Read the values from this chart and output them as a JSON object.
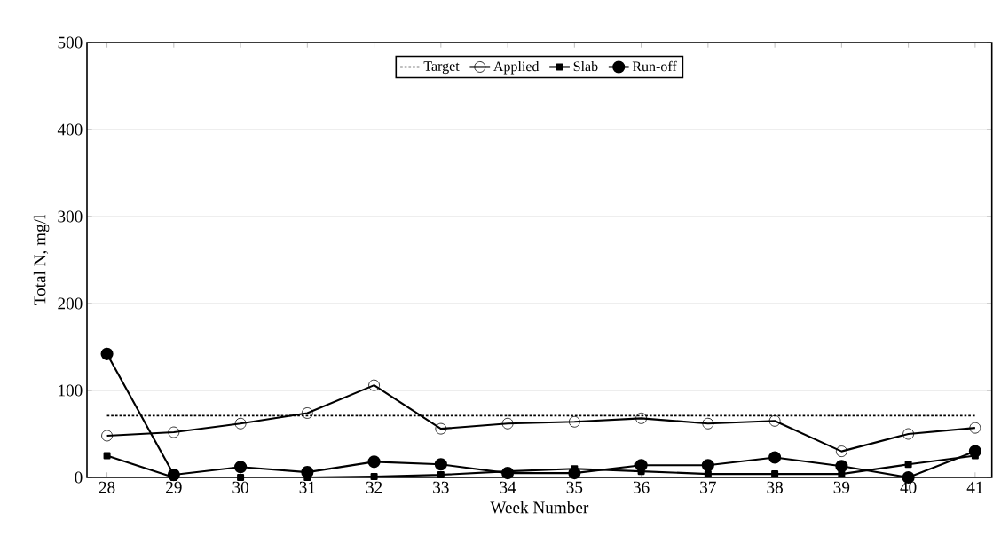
{
  "chart_data": {
    "type": "line",
    "xlabel": "Week Number",
    "ylabel": "Total N, mg/l",
    "xlim": [
      27.7,
      41.25
    ],
    "xticks": [
      28,
      29,
      30,
      31,
      32,
      33,
      34,
      35,
      36,
      37,
      38,
      39,
      40,
      41
    ],
    "ylim": [
      0,
      500
    ],
    "yticks": [
      0,
      100,
      200,
      300,
      400,
      500
    ],
    "grid": "y",
    "legend": "top",
    "series": [
      {
        "name": "Target",
        "color": "#000000",
        "x": [
          28,
          41
        ],
        "values": [
          71,
          71
        ],
        "marker": "none",
        "line_style": "dotted"
      },
      {
        "name": "Applied",
        "color": "#000000",
        "x": [
          28,
          29,
          30,
          31,
          32,
          33,
          34,
          35,
          36,
          37,
          38,
          39,
          40,
          41
        ],
        "values": [
          48,
          52,
          62,
          74,
          106,
          56,
          62,
          64,
          68,
          62,
          65,
          30,
          50,
          57
        ],
        "marker": "circle",
        "line_style": "solid"
      },
      {
        "name": "Slab",
        "color": "#000000",
        "x": [
          28,
          29,
          30,
          31,
          32,
          33,
          34,
          35,
          36,
          37,
          38,
          39,
          40,
          41
        ],
        "values": [
          25,
          0,
          0,
          0,
          1,
          3,
          7,
          10,
          7,
          4,
          4,
          4,
          15,
          25
        ],
        "marker": "square",
        "line_style": "solid"
      },
      {
        "name": "Run-off",
        "color": "#000000",
        "x": [
          28,
          29,
          30,
          31,
          32,
          33,
          34,
          35,
          36,
          37,
          38,
          39,
          40,
          41
        ],
        "values": [
          142,
          3,
          12,
          6,
          18,
          15,
          5,
          5,
          14,
          14,
          23,
          13,
          0,
          30
        ],
        "marker": "filled circle",
        "line_style": "solid"
      }
    ]
  }
}
